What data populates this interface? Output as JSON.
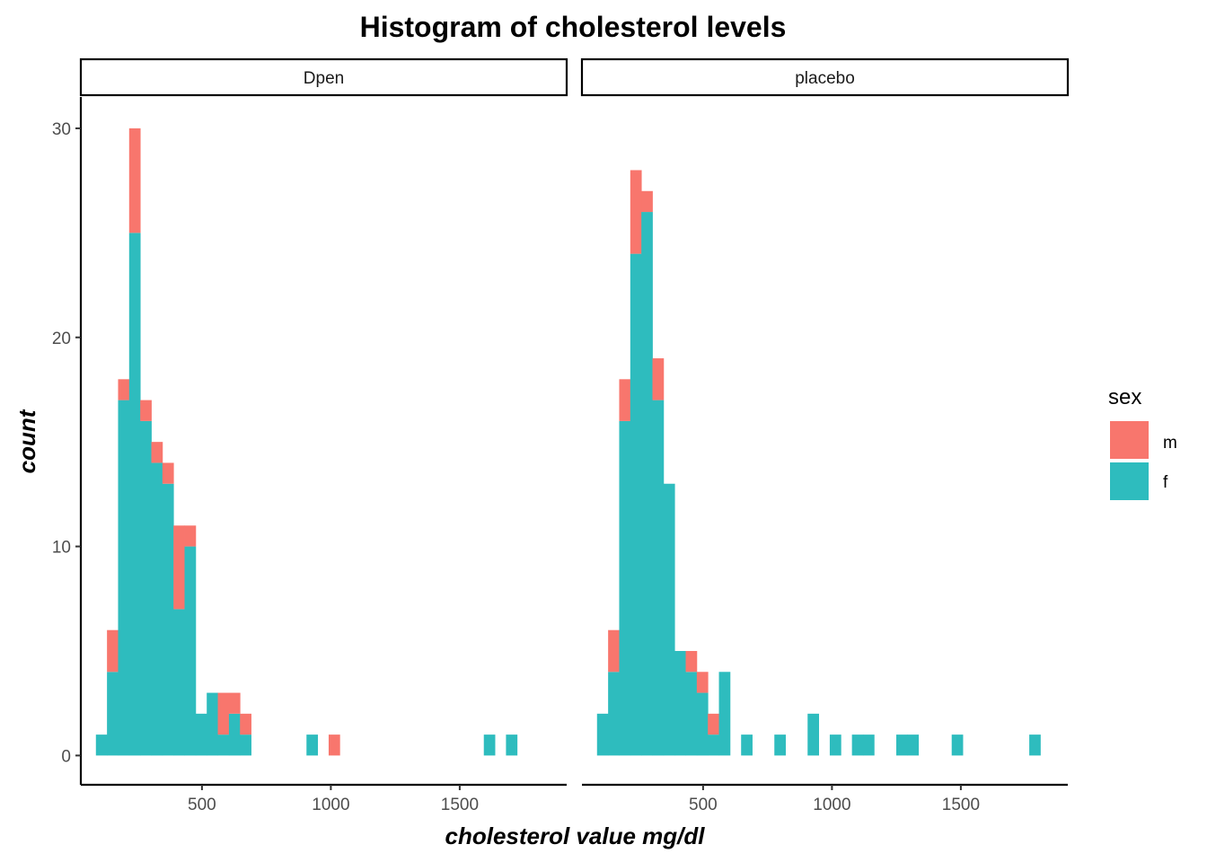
{
  "chart_data": {
    "type": "bar",
    "subtype": "stacked-histogram-faceted",
    "title": "Histogram of cholesterol levels",
    "xlabel": "cholesterol value mg/dl",
    "ylabel": "count",
    "xlim": [
      30,
      1915
    ],
    "ylim": [
      -1.4,
      31.5
    ],
    "x_ticks": [
      500,
      1000,
      1500
    ],
    "x_tick_labels": [
      "500",
      "1000",
      "1500"
    ],
    "y_ticks": [
      0,
      10,
      20,
      30
    ],
    "y_tick_labels": [
      "0",
      "10",
      "20",
      "30"
    ],
    "bin_width": 43,
    "legend": {
      "title": "sex",
      "position": "right",
      "entries": [
        {
          "label": "m",
          "color": "#F8766D"
        },
        {
          "label": "f",
          "color": "#2EBCBE"
        }
      ]
    },
    "stack_order": [
      "f",
      "m"
    ],
    "panels": [
      {
        "name": "Dpen",
        "bins": [
          {
            "x": 110,
            "f": 1,
            "m": 0
          },
          {
            "x": 153,
            "f": 4,
            "m": 2
          },
          {
            "x": 196,
            "f": 17,
            "m": 1
          },
          {
            "x": 239,
            "f": 25,
            "m": 5
          },
          {
            "x": 282,
            "f": 16,
            "m": 1
          },
          {
            "x": 325,
            "f": 14,
            "m": 1
          },
          {
            "x": 368,
            "f": 13,
            "m": 1
          },
          {
            "x": 411,
            "f": 7,
            "m": 4
          },
          {
            "x": 454,
            "f": 10,
            "m": 1
          },
          {
            "x": 497,
            "f": 2,
            "m": 0
          },
          {
            "x": 540,
            "f": 3,
            "m": 0
          },
          {
            "x": 583,
            "f": 1,
            "m": 2
          },
          {
            "x": 626,
            "f": 2,
            "m": 1
          },
          {
            "x": 669,
            "f": 1,
            "m": 1
          },
          {
            "x": 927,
            "f": 1,
            "m": 0
          },
          {
            "x": 1013,
            "f": 0,
            "m": 1
          },
          {
            "x": 1615,
            "f": 1,
            "m": 0
          },
          {
            "x": 1701,
            "f": 1,
            "m": 0
          }
        ]
      },
      {
        "name": "placebo",
        "bins": [
          {
            "x": 110,
            "f": 2,
            "m": 0
          },
          {
            "x": 153,
            "f": 4,
            "m": 2
          },
          {
            "x": 196,
            "f": 16,
            "m": 2
          },
          {
            "x": 239,
            "f": 24,
            "m": 4
          },
          {
            "x": 282,
            "f": 26,
            "m": 1
          },
          {
            "x": 325,
            "f": 17,
            "m": 2
          },
          {
            "x": 368,
            "f": 13,
            "m": 0
          },
          {
            "x": 411,
            "f": 5,
            "m": 0
          },
          {
            "x": 454,
            "f": 4,
            "m": 1
          },
          {
            "x": 497,
            "f": 3,
            "m": 1
          },
          {
            "x": 540,
            "f": 1,
            "m": 1
          },
          {
            "x": 583,
            "f": 4,
            "m": 0
          },
          {
            "x": 669,
            "f": 1,
            "m": 0
          },
          {
            "x": 798,
            "f": 1,
            "m": 0
          },
          {
            "x": 927,
            "f": 2,
            "m": 0
          },
          {
            "x": 1013,
            "f": 1,
            "m": 0
          },
          {
            "x": 1099,
            "f": 1,
            "m": 0
          },
          {
            "x": 1142,
            "f": 1,
            "m": 0
          },
          {
            "x": 1271,
            "f": 1,
            "m": 0
          },
          {
            "x": 1314,
            "f": 1,
            "m": 0
          },
          {
            "x": 1486,
            "f": 1,
            "m": 0
          },
          {
            "x": 1787,
            "f": 1,
            "m": 0
          }
        ]
      }
    ]
  }
}
